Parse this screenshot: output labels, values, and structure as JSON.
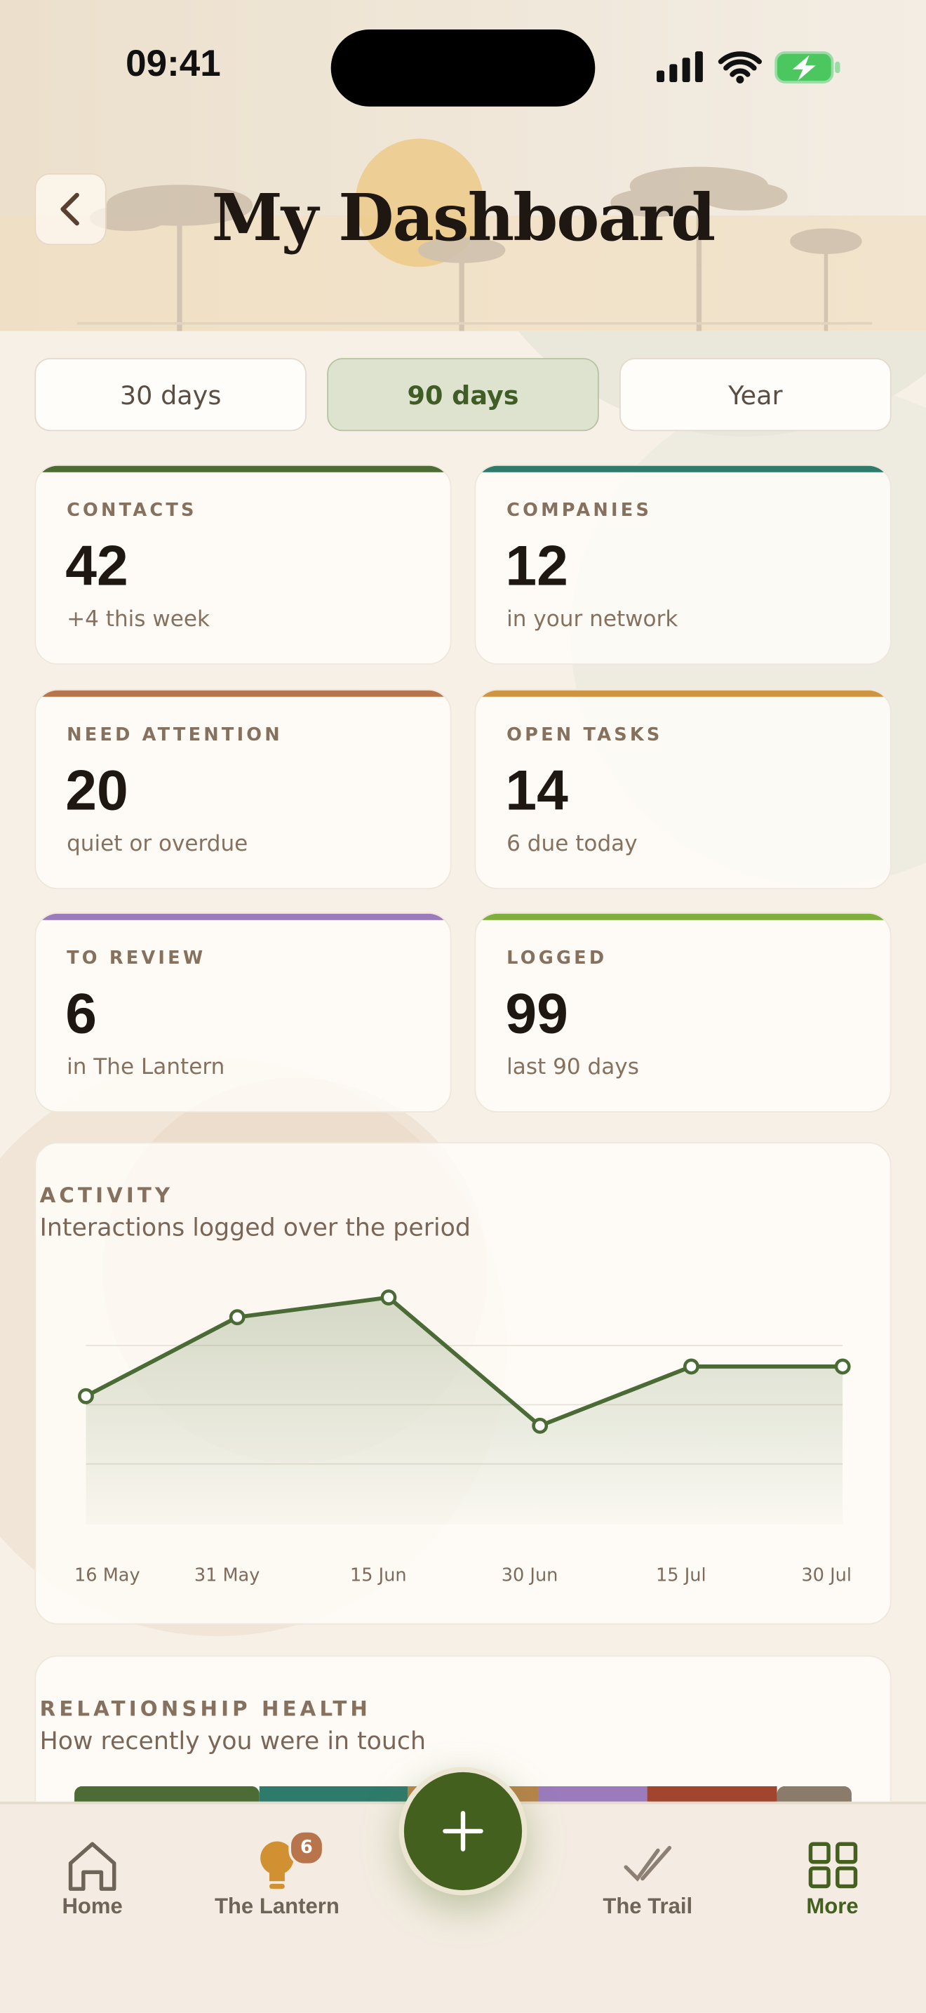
{
  "status_bar": {
    "time": "09:41"
  },
  "header": {
    "title": "My Dashboard"
  },
  "periods": {
    "options": [
      "30 days",
      "90 days",
      "Year"
    ],
    "selected": 1
  },
  "stats": [
    {
      "label": "CONTACTS",
      "value": 42,
      "note": "+4 this week",
      "color": "#4d6b35"
    },
    {
      "label": "COMPANIES",
      "value": 12,
      "note": "in your network",
      "color": "#2e7a6b"
    },
    {
      "label": "NEED ATTENTION",
      "value": 20,
      "note": "quiet or overdue",
      "color": "#b8744a"
    },
    {
      "label": "OPEN TASKS",
      "value": 14,
      "note": "6 due today",
      "color": "#cf9440"
    },
    {
      "label": "TO REVIEW",
      "value": 6,
      "note": "in The Lantern",
      "color": "#9b7bbb"
    },
    {
      "label": "LOGGED",
      "value": 99,
      "note": "last 90 days",
      "color": "#7fb03e"
    }
  ],
  "chart_data": {
    "type": "line",
    "title": "ACTIVITY",
    "subtitle": "Interactions logged over the period",
    "categories": [
      "16 May",
      "31 May",
      "15 Jun",
      "30 Jun",
      "15 Jul",
      "30 Jul"
    ],
    "values": [
      13,
      21,
      23,
      10,
      16,
      16
    ],
    "color": "#4a6b35",
    "ylim": [
      0,
      24
    ],
    "grid": true
  },
  "health": {
    "title": "RELATIONSHIP HEALTH",
    "subtitle": "How recently you were in touch",
    "segments": [
      {
        "color": "#4d6b35",
        "value": 23.8
      },
      {
        "color": "#2e7a6b",
        "value": 19.1
      },
      {
        "color": "#b8844a",
        "value": 16.8
      },
      {
        "color": "#9b7bbb",
        "value": 14
      },
      {
        "color": "#a2452e",
        "value": 16.7
      },
      {
        "color": "#8a7b6b",
        "value": 9.6
      }
    ]
  },
  "nav": {
    "items": [
      {
        "label": "Home"
      },
      {
        "label": "The Lantern",
        "badge": 6
      },
      {
        "label": "The Trail"
      },
      {
        "label": "More"
      }
    ],
    "active": 3
  }
}
